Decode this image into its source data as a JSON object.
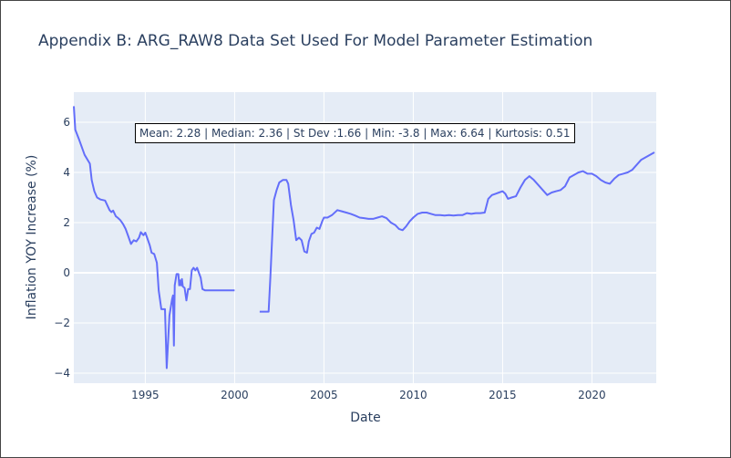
{
  "title": "Appendix B: ARG_RAW8 Data Set Used For Model Parameter Estimation",
  "annotation": "Mean: 2.28 | Median: 2.36 | St Dev :1.66 | Min: -3.8 | Max: 6.64 | Kurtosis: 0.51",
  "colors": {
    "plot_bg": "#e5ecf6",
    "grid": "#ffffff",
    "line": "#636efa",
    "text": "#2a3f5f"
  },
  "chart_data": {
    "type": "line",
    "title": "Appendix B: ARG_RAW8 Data Set Used For Model Parameter Estimation",
    "xlabel": "Date",
    "ylabel": "Inflation YOY Increase (%)",
    "xlim": [
      1991.0,
      2023.6
    ],
    "ylim": [
      -4.4,
      7.2
    ],
    "xticks": [
      1995,
      2000,
      2005,
      2010,
      2015,
      2020
    ],
    "xticklabels": [
      "1995",
      "2000",
      "2005",
      "2010",
      "2015",
      "2020"
    ],
    "yticks": [
      -4,
      -2,
      0,
      2,
      4,
      6
    ],
    "yticklabels": [
      "−4",
      "−2",
      "0",
      "2",
      "4",
      "6"
    ],
    "grid": true,
    "legend": "none",
    "series": [
      {
        "segments": [
          {
            "x": [
              1991.0,
              1991.08,
              1991.3,
              1991.6,
              1991.9,
              1992.0,
              1992.15,
              1992.3,
              1992.5,
              1992.75,
              1993.0,
              1993.1,
              1993.2,
              1993.35,
              1993.45,
              1993.6,
              1993.75,
              1993.9,
              1994.05,
              1994.2,
              1994.35,
              1994.5,
              1994.65,
              1994.75,
              1994.9,
              1995.0,
              1995.1,
              1995.25,
              1995.35,
              1995.5,
              1995.65,
              1995.75,
              1995.9,
              1996.0,
              1996.1,
              1996.2,
              1996.35,
              1996.5,
              1996.55,
              1996.6,
              1996.65,
              1996.75,
              1996.85,
              1996.9,
              1996.95,
              1997.0,
              1997.05,
              1997.1,
              1997.2,
              1997.3,
              1997.4,
              1997.5,
              1997.6,
              1997.7,
              1997.8,
              1997.9,
              1998.0,
              1998.1,
              1998.2,
              1998.35,
              1998.45,
              1998.6,
              1998.75,
              1998.9,
              1999.0,
              1999.1,
              1999.25,
              1999.5,
              1999.75,
              2000.0
            ],
            "y": [
              6.64,
              5.7,
              5.3,
              4.7,
              4.35,
              3.7,
              3.25,
              3.0,
              2.92,
              2.88,
              2.5,
              2.42,
              2.48,
              2.25,
              2.2,
              2.1,
              1.95,
              1.75,
              1.45,
              1.15,
              1.3,
              1.25,
              1.4,
              1.62,
              1.5,
              1.6,
              1.4,
              1.1,
              0.8,
              0.75,
              0.4,
              -0.7,
              -1.45,
              -1.45,
              -1.45,
              -3.8,
              -1.7,
              -1.05,
              -0.9,
              -2.9,
              -0.5,
              -0.05,
              -0.05,
              -0.5,
              -0.3,
              -0.5,
              -0.25,
              -0.55,
              -0.6,
              -1.1,
              -0.65,
              -0.65,
              0.1,
              0.2,
              0.1,
              0.2,
              0.0,
              -0.2,
              -0.65,
              -0.7,
              -0.7,
              -0.7,
              -0.7,
              -0.7,
              -0.7,
              -0.7,
              -0.7,
              -0.7,
              -0.7,
              -0.7
            ]
          },
          {
            "x": [
              2001.4,
              2001.9,
              2002.0,
              2002.1,
              2002.2,
              2002.35,
              2002.5,
              2002.7,
              2002.9,
              2003.0,
              2003.15,
              2003.3,
              2003.45,
              2003.6,
              2003.75,
              2003.9,
              2004.05,
              2004.15,
              2004.3,
              2004.45,
              2004.6,
              2004.75,
              2004.9,
              2005.0,
              2005.2,
              2005.45,
              2005.75,
              2006.0,
              2006.25,
              2006.5,
              2006.75,
              2007.0,
              2007.25,
              2007.5,
              2007.75,
              2008.0,
              2008.25,
              2008.5,
              2008.75,
              2009.0,
              2009.2,
              2009.4,
              2009.6,
              2009.8,
              2010.0,
              2010.25,
              2010.5,
              2010.75,
              2011.0,
              2011.25,
              2011.5,
              2011.75,
              2012.0,
              2012.25,
              2012.5,
              2012.75,
              2013.0,
              2013.25,
              2013.5,
              2013.75,
              2014.0,
              2014.2,
              2014.4,
              2014.6,
              2014.8,
              2015.0,
              2015.15,
              2015.3,
              2015.5,
              2015.75,
              2016.0,
              2016.25,
              2016.5,
              2016.75,
              2017.0,
              2017.25,
              2017.5,
              2017.75,
              2018.0,
              2018.25,
              2018.5,
              2018.75,
              2019.0,
              2019.25,
              2019.5,
              2019.75,
              2020.0,
              2020.25,
              2020.5,
              2020.75,
              2021.0,
              2021.25,
              2021.5,
              2021.75,
              2022.0,
              2022.25,
              2022.5,
              2022.75,
              2023.0,
              2023.25,
              2023.5
            ],
            "y": [
              -1.55,
              -1.55,
              -0.2,
              1.4,
              2.9,
              3.3,
              3.6,
              3.7,
              3.7,
              3.55,
              2.7,
              2.1,
              1.3,
              1.4,
              1.3,
              0.85,
              0.8,
              1.25,
              1.55,
              1.6,
              1.8,
              1.75,
              2.05,
              2.2,
              2.2,
              2.3,
              2.5,
              2.45,
              2.4,
              2.35,
              2.28,
              2.2,
              2.18,
              2.15,
              2.15,
              2.2,
              2.25,
              2.18,
              2.0,
              1.9,
              1.75,
              1.7,
              1.85,
              2.05,
              2.2,
              2.35,
              2.4,
              2.4,
              2.35,
              2.3,
              2.3,
              2.28,
              2.3,
              2.28,
              2.3,
              2.3,
              2.38,
              2.35,
              2.38,
              2.38,
              2.4,
              2.95,
              3.1,
              3.15,
              3.2,
              3.25,
              3.15,
              2.95,
              3.0,
              3.05,
              3.4,
              3.7,
              3.85,
              3.7,
              3.5,
              3.3,
              3.1,
              3.2,
              3.25,
              3.3,
              3.45,
              3.8,
              3.9,
              4.0,
              4.05,
              3.95,
              3.95,
              3.85,
              3.7,
              3.6,
              3.55,
              3.75,
              3.9,
              3.95,
              4.0,
              4.1,
              4.3,
              4.5,
              4.6,
              4.7,
              4.8
            ]
          }
        ]
      }
    ]
  }
}
